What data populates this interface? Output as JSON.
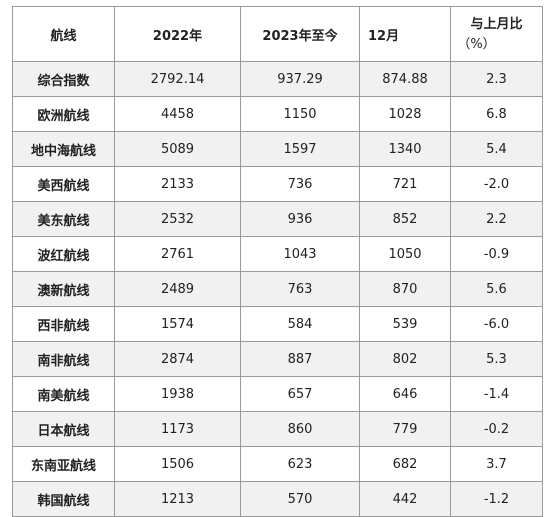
{
  "headers": {
    "route": "航线",
    "y2022": "2022年",
    "y2023": "2023年至今",
    "month": "12月",
    "ratio_line1": "与上月比",
    "ratio_line2": "（%）"
  },
  "rows": [
    {
      "route": "综合指数",
      "y2022": "2792.14",
      "y2023": "937.29",
      "month": "874.88",
      "ratio": "2.3"
    },
    {
      "route": "欧洲航线",
      "y2022": "4458",
      "y2023": "1150",
      "month": "1028",
      "ratio": "6.8"
    },
    {
      "route": "地中海航线",
      "y2022": "5089",
      "y2023": "1597",
      "month": "1340",
      "ratio": "5.4"
    },
    {
      "route": "美西航线",
      "y2022": "2133",
      "y2023": "736",
      "month": "721",
      "ratio": "-2.0"
    },
    {
      "route": "美东航线",
      "y2022": "2532",
      "y2023": "936",
      "month": "852",
      "ratio": "2.2"
    },
    {
      "route": "波红航线",
      "y2022": "2761",
      "y2023": "1043",
      "month": "1050",
      "ratio": "-0.9"
    },
    {
      "route": "澳新航线",
      "y2022": "2489",
      "y2023": "763",
      "month": "870",
      "ratio": "5.6"
    },
    {
      "route": "西非航线",
      "y2022": "1574",
      "y2023": "584",
      "month": "539",
      "ratio": "-6.0"
    },
    {
      "route": "南非航线",
      "y2022": "2874",
      "y2023": "887",
      "month": "802",
      "ratio": "5.3"
    },
    {
      "route": "南美航线",
      "y2022": "1938",
      "y2023": "657",
      "month": "646",
      "ratio": "-1.4"
    },
    {
      "route": "日本航线",
      "y2022": "1173",
      "y2023": "860",
      "month": "779",
      "ratio": "-0.2"
    },
    {
      "route": "东南亚航线",
      "y2022": "1506",
      "y2023": "623",
      "month": "682",
      "ratio": "3.7"
    },
    {
      "route": "韩国航线",
      "y2022": "1213",
      "y2023": "570",
      "month": "442",
      "ratio": "-1.2"
    }
  ]
}
